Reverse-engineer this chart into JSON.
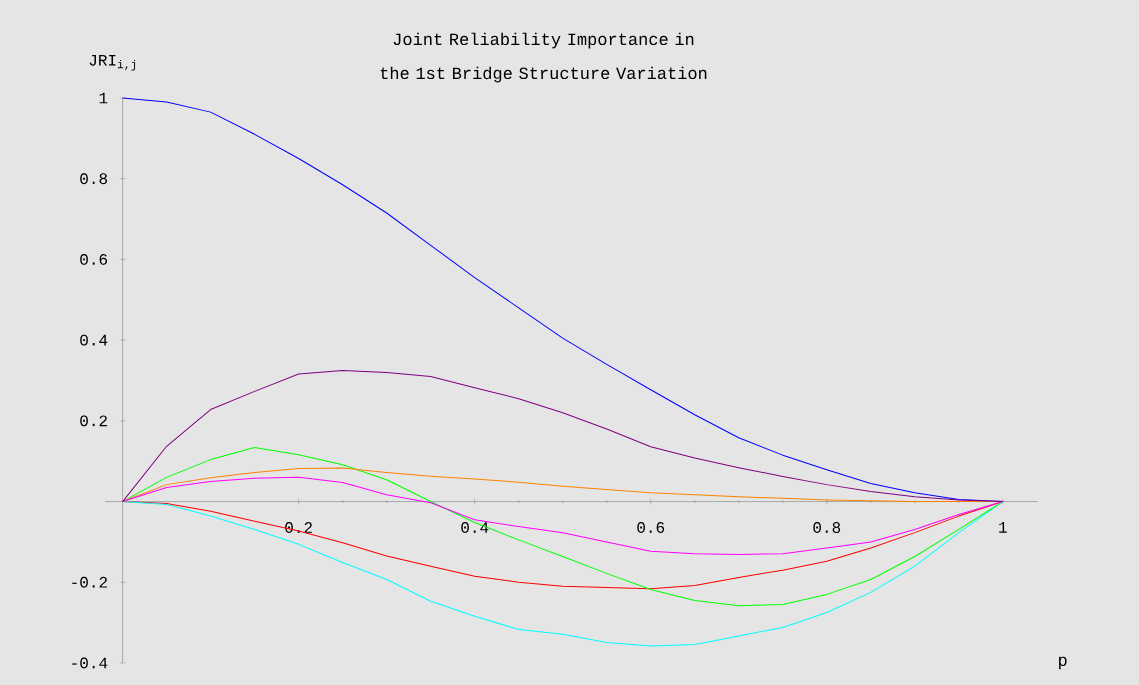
{
  "chart_data": {
    "type": "line",
    "title": "Joint Reliability Importance in the 1st Bridge Structure Variation",
    "xlabel": "p",
    "ylabel": "JRI$_{i,j}$",
    "x": [
      0,
      0.05,
      0.1,
      0.15,
      0.2,
      0.25,
      0.3,
      0.35,
      0.4,
      0.45,
      0.5,
      0.55,
      0.6,
      0.65,
      0.7,
      0.75,
      0.8,
      0.85,
      0.9,
      0.95,
      1
    ],
    "series": [
      {
        "color": "#ff0000",
        "values": [
          0,
          -0.005,
          -0.024,
          -0.049,
          -0.073,
          -0.102,
          -0.135,
          -0.16,
          -0.185,
          -0.2,
          -0.21,
          -0.213,
          -0.216,
          -0.208,
          -0.188,
          -0.17,
          -0.148,
          -0.115,
          -0.077,
          -0.036,
          0
        ]
      },
      {
        "color": "#00ffff",
        "values": [
          0,
          -0.007,
          -0.036,
          -0.069,
          -0.106,
          -0.151,
          -0.193,
          -0.247,
          -0.284,
          -0.317,
          -0.329,
          -0.349,
          -0.358,
          -0.354,
          -0.333,
          -0.312,
          -0.275,
          -0.225,
          -0.16,
          -0.077,
          0
        ]
      },
      {
        "color": "#00ff00",
        "values": [
          0,
          0.06,
          0.104,
          0.134,
          0.116,
          0.091,
          0.054,
          0,
          -0.052,
          -0.095,
          -0.136,
          -0.178,
          -0.218,
          -0.245,
          -0.258,
          -0.255,
          -0.23,
          -0.193,
          -0.136,
          -0.069,
          0
        ]
      },
      {
        "color": "#0000ff",
        "values": [
          1,
          0.99,
          0.965,
          0.91,
          0.85,
          0.785,
          0.715,
          0.635,
          0.555,
          0.48,
          0.405,
          0.34,
          0.277,
          0.215,
          0.158,
          0.115,
          0.079,
          0.045,
          0.022,
          0.005,
          0
        ]
      },
      {
        "color": "#ff8000",
        "values": [
          0,
          0.042,
          0.059,
          0.072,
          0.082,
          0.083,
          0.072,
          0.063,
          0.056,
          0.048,
          0.038,
          0.03,
          0.022,
          0.017,
          0.012,
          0.008,
          0.004,
          0.002,
          0,
          0,
          0
        ]
      },
      {
        "color": "#ff00ff",
        "values": [
          0,
          0.035,
          0.05,
          0.058,
          0.06,
          0.047,
          0.017,
          -0.003,
          -0.045,
          -0.062,
          -0.077,
          -0.1,
          -0.123,
          -0.129,
          -0.131,
          -0.129,
          -0.115,
          -0.1,
          -0.069,
          -0.032,
          0
        ]
      },
      {
        "color": "#800080",
        "values": [
          0,
          0.137,
          0.228,
          0.273,
          0.316,
          0.325,
          0.32,
          0.31,
          0.282,
          0.255,
          0.22,
          0.18,
          0.136,
          0.108,
          0.084,
          0.062,
          0.042,
          0.025,
          0.012,
          0.004,
          0
        ]
      }
    ],
    "xlim": [
      -0.02,
      1.04
    ],
    "ylim": [
      -0.4,
      1.0
    ],
    "xticks": [
      0.2,
      0.4,
      0.6,
      0.8,
      1
    ],
    "yticks": [
      -0.4,
      -0.2,
      0.2,
      0.4,
      0.6,
      0.8,
      1
    ],
    "grid": false
  }
}
